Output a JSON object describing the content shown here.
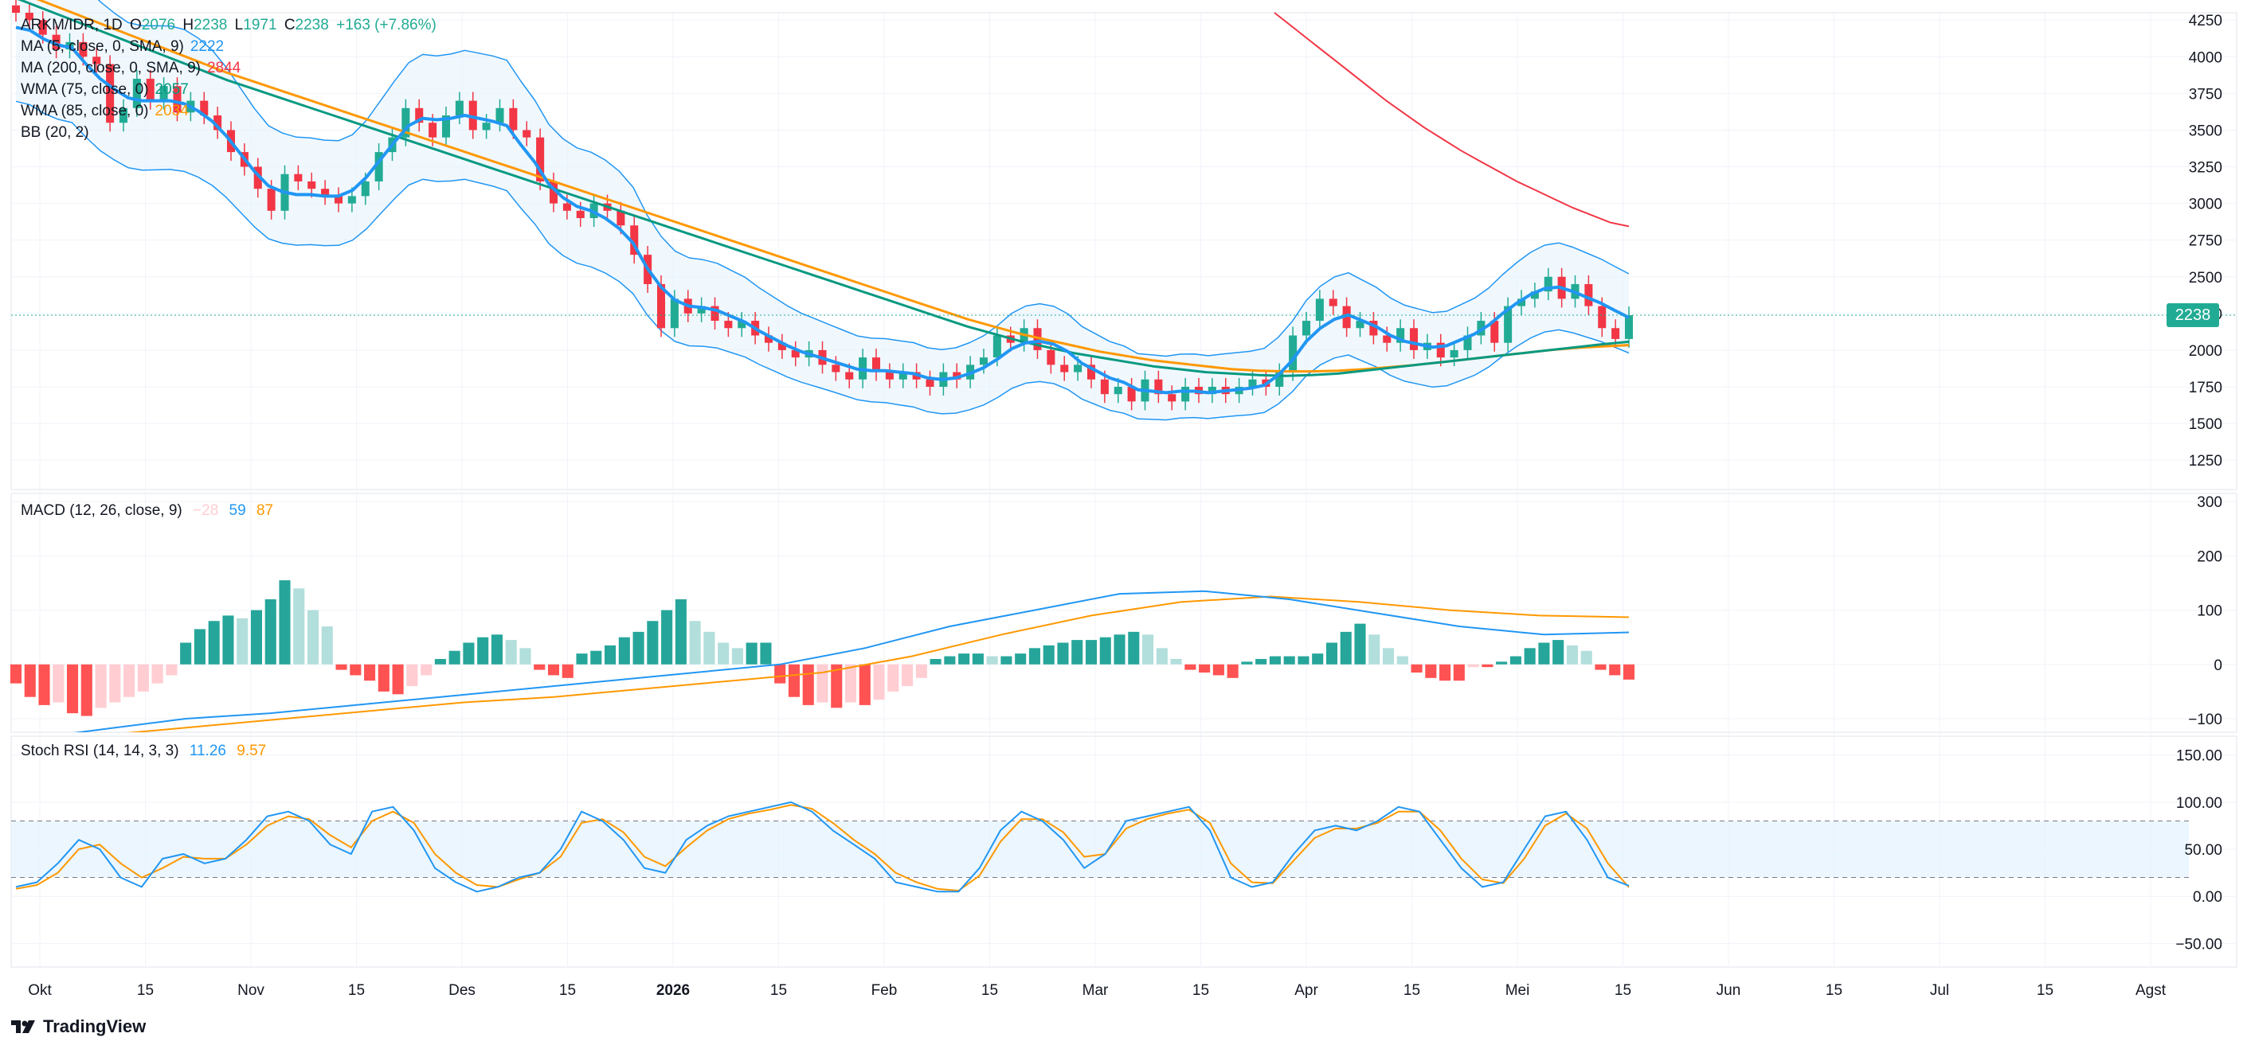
{
  "header": {
    "symbol": "ARKM/IDR, 1D",
    "open_label": "O",
    "open": "2076",
    "high_label": "H",
    "high": "2238",
    "low_label": "L",
    "low": "1971",
    "close_label": "C",
    "close": "2238",
    "change": "+163 (+7.86%)"
  },
  "price_legend": [
    {
      "label": "MA (5, close, 0, SMA, 9)",
      "value": "2222",
      "color": "#2196f3"
    },
    {
      "label": "MA (200, close, 0, SMA, 9)",
      "value": "2844",
      "color": "#f23645"
    },
    {
      "label": "WMA (75, close, 0)",
      "value": "2057",
      "color": "#089981"
    },
    {
      "label": "WMA (85, close, 0)",
      "value": "2034",
      "color": "#ff9800"
    },
    {
      "label": "BB (20, 2)",
      "value": "",
      "color": "#2196f3"
    }
  ],
  "macd_legend": {
    "label": "MACD (12, 26, close, 9)",
    "hist": "−28",
    "macd": "59",
    "signal": "87"
  },
  "stoch_legend": {
    "label": "Stoch RSI (14, 14, 3, 3)",
    "k": "11.26",
    "d": "9.57"
  },
  "last_price_tag": "2238",
  "branding": "TradingView",
  "colors": {
    "up": "#22ab94",
    "down": "#f23645",
    "ma5": "#2196f3",
    "ma200": "#f23645",
    "wma75": "#089981",
    "wma85": "#ff9800",
    "bb": "#2196f3",
    "bb_fill": "#e3f2fd",
    "macd_line": "#2196f3",
    "signal_line": "#ff9800",
    "hist_up_strong": "#26a69a",
    "hist_up_weak": "#b2dfdb",
    "hist_down_strong": "#ff5252",
    "hist_down_weak": "#ffcdd2",
    "stoch_k": "#2196f3",
    "stoch_d": "#ff9800",
    "grid": "#f0f3fa",
    "axis_text": "#131722"
  },
  "chart_data": [
    {
      "type": "candlestick",
      "pane": "price",
      "y_ticks": [
        1250,
        1500,
        1750,
        2000,
        2250,
        2500,
        2750,
        3000,
        3250,
        3500,
        3750,
        4000,
        4250
      ],
      "ylim": [
        1050,
        4300
      ],
      "x_ticks": [
        "Okt",
        "15",
        "Nov",
        "15",
        "Des",
        "15",
        "2026",
        "15",
        "Feb",
        "15",
        "Mar",
        "15",
        "Apr",
        "15",
        "Mei",
        "15",
        "Jun",
        "15",
        "Jul",
        "15",
        "Agst"
      ],
      "close": [
        4300,
        4250,
        4150,
        4050,
        4100,
        4000,
        3950,
        3550,
        3650,
        3850,
        3700,
        3800,
        3620,
        3700,
        3600,
        3500,
        3350,
        3250,
        3100,
        2950,
        3200,
        3150,
        3100,
        3050,
        3000,
        3050,
        3150,
        3350,
        3450,
        3650,
        3550,
        3450,
        3600,
        3700,
        3500,
        3550,
        3650,
        3500,
        3450,
        3150,
        3000,
        2950,
        2900,
        3000,
        2950,
        2850,
        2650,
        2450,
        2150,
        2350,
        2250,
        2300,
        2200,
        2150,
        2200,
        2100,
        2050,
        2000,
        1950,
        2000,
        1900,
        1850,
        1800,
        1950,
        1850,
        1800,
        1850,
        1800,
        1750,
        1850,
        1800,
        1900,
        1950,
        2100,
        2050,
        2150,
        2000,
        1900,
        1850,
        1900,
        1800,
        1700,
        1750,
        1650,
        1800,
        1700,
        1650,
        1750,
        1700,
        1750,
        1700,
        1750,
        1800,
        1750,
        1850,
        2100,
        2200,
        2350,
        2300,
        2150,
        2200,
        2100,
        2050,
        2150,
        2000,
        2050,
        1950,
        2000,
        2100,
        2200,
        2050,
        2300,
        2350,
        2400,
        2500,
        2350,
        2450,
        2300,
        2150,
        2076,
        2238
      ],
      "high_last": 2238,
      "low_last": 1971,
      "ma5": [
        4200,
        4180,
        4120,
        4080,
        4060,
        3950,
        3850,
        3780,
        3720,
        3700,
        3700,
        3700,
        3680,
        3630,
        3560,
        3460,
        3340,
        3220,
        3120,
        3080,
        3060,
        3060,
        3050,
        3050,
        3090,
        3180,
        3300,
        3420,
        3530,
        3580,
        3570,
        3580,
        3600,
        3580,
        3560,
        3530,
        3400,
        3280,
        3130,
        3040,
        2980,
        2950,
        2900,
        2830,
        2730,
        2560,
        2430,
        2340,
        2300,
        2290,
        2270,
        2230,
        2190,
        2130,
        2080,
        2030,
        1990,
        1960,
        1930,
        1900,
        1870,
        1860,
        1860,
        1850,
        1840,
        1810,
        1800,
        1810,
        1840,
        1880,
        1940,
        2010,
        2050,
        2060,
        2040,
        1990,
        1910,
        1860,
        1810,
        1780,
        1730,
        1720,
        1710,
        1720,
        1720,
        1710,
        1720,
        1730,
        1740,
        1760,
        1830,
        1930,
        2060,
        2150,
        2210,
        2240,
        2200,
        2160,
        2100,
        2060,
        2040,
        2020,
        2030,
        2070,
        2110,
        2170,
        2250,
        2320,
        2380,
        2420,
        2430,
        2400,
        2360,
        2320,
        2270,
        2222
      ],
      "wma75": [
        4400,
        4330,
        4260,
        4190,
        4120,
        4050,
        3980,
        3910,
        3840,
        3780,
        3720,
        3660,
        3600,
        3540,
        3480,
        3420,
        3360,
        3300,
        3240,
        3180,
        3120,
        3060,
        3000,
        2940,
        2880,
        2820,
        2760,
        2700,
        2640,
        2580,
        2520,
        2460,
        2400,
        2340,
        2280,
        2220,
        2160,
        2110,
        2060,
        2020,
        1980,
        1950,
        1920,
        1890,
        1870,
        1850,
        1840,
        1830,
        1825,
        1830,
        1840,
        1860,
        1880,
        1900,
        1920,
        1940,
        1960,
        1980,
        2000,
        2020,
        2040,
        2057
      ],
      "wma85": [
        4450,
        4380,
        4310,
        4240,
        4170,
        4100,
        4030,
        3960,
        3890,
        3830,
        3770,
        3710,
        3650,
        3590,
        3530,
        3470,
        3410,
        3350,
        3290,
        3230,
        3170,
        3110,
        3050,
        2990,
        2930,
        2870,
        2810,
        2750,
        2690,
        2630,
        2570,
        2510,
        2450,
        2390,
        2330,
        2270,
        2210,
        2160,
        2110,
        2070,
        2030,
        1990,
        1960,
        1930,
        1910,
        1890,
        1870,
        1860,
        1855,
        1855,
        1860,
        1870,
        1885,
        1900,
        1920,
        1940,
        1960,
        1980,
        2000,
        2015,
        2025,
        2034
      ],
      "ma200": [
        4300,
        4200,
        4100,
        4000,
        3900,
        3800,
        3700,
        3610,
        3520,
        3440,
        3360,
        3290,
        3220,
        3150,
        3090,
        3030,
        2970,
        2920,
        2870,
        2844
      ]
    },
    {
      "type": "bar",
      "pane": "macd",
      "title": "MACD (12, 26, close, 9)",
      "y_ticks": [
        -100,
        0,
        100,
        200,
        300
      ],
      "ylim": [
        -125,
        315
      ],
      "histogram": [
        -35,
        -60,
        -75,
        -70,
        -90,
        -95,
        -80,
        -70,
        -60,
        -50,
        -35,
        -20,
        40,
        65,
        80,
        90,
        85,
        100,
        120,
        155,
        140,
        100,
        70,
        -10,
        -20,
        -30,
        -50,
        -55,
        -40,
        -20,
        10,
        25,
        40,
        50,
        55,
        45,
        30,
        -10,
        -20,
        -25,
        20,
        25,
        35,
        50,
        60,
        80,
        100,
        120,
        80,
        60,
        40,
        30,
        40,
        40,
        -35,
        -60,
        -75,
        -70,
        -80,
        -70,
        -75,
        -65,
        -50,
        -40,
        -25,
        10,
        15,
        20,
        20,
        15,
        15,
        20,
        30,
        35,
        40,
        45,
        45,
        50,
        55,
        60,
        55,
        30,
        10,
        -10,
        -15,
        -20,
        -25,
        5,
        10,
        15,
        15,
        15,
        20,
        40,
        60,
        75,
        55,
        30,
        15,
        -15,
        -25,
        -30,
        -30,
        -5,
        -5,
        5,
        15,
        30,
        40,
        45,
        35,
        25,
        -10,
        -20,
        -28
      ],
      "macd": [
        -140,
        -120,
        -100,
        -90,
        -75,
        -60,
        -45,
        -30,
        -15,
        0,
        30,
        70,
        100,
        130,
        135,
        120,
        95,
        70,
        55,
        59
      ],
      "signal": [
        -150,
        -130,
        -115,
        -100,
        -85,
        -70,
        -60,
        -45,
        -30,
        -15,
        15,
        55,
        90,
        115,
        125,
        115,
        100,
        90,
        87
      ]
    },
    {
      "type": "line",
      "pane": "stoch_rsi",
      "title": "Stoch RSI (14, 14, 3, 3)",
      "y_ticks": [
        -50,
        0,
        50,
        100,
        150
      ],
      "y_tick_labels": [
        "−50.00",
        "0.00",
        "50.00",
        "100.00",
        "150.00"
      ],
      "ylim": [
        -75,
        170
      ],
      "band": [
        20,
        80
      ],
      "k": [
        10,
        15,
        35,
        60,
        50,
        20,
        10,
        40,
        45,
        35,
        40,
        60,
        85,
        90,
        80,
        55,
        45,
        90,
        95,
        70,
        30,
        15,
        5,
        10,
        20,
        25,
        50,
        90,
        80,
        60,
        30,
        25,
        60,
        75,
        85,
        90,
        95,
        100,
        90,
        70,
        55,
        40,
        15,
        10,
        5,
        5,
        30,
        70,
        90,
        80,
        60,
        30,
        45,
        80,
        85,
        90,
        95,
        70,
        20,
        10,
        15,
        45,
        70,
        75,
        70,
        80,
        95,
        90,
        60,
        30,
        10,
        15,
        50,
        85,
        90,
        60,
        20,
        11.26
      ],
      "d": [
        8,
        12,
        25,
        50,
        55,
        35,
        20,
        30,
        42,
        40,
        40,
        55,
        75,
        85,
        82,
        65,
        52,
        80,
        90,
        78,
        45,
        25,
        12,
        10,
        18,
        25,
        42,
        78,
        82,
        68,
        42,
        32,
        52,
        70,
        82,
        88,
        92,
        97,
        93,
        78,
        60,
        45,
        25,
        15,
        8,
        6,
        22,
        58,
        82,
        82,
        68,
        42,
        45,
        72,
        82,
        88,
        92,
        78,
        35,
        15,
        14,
        38,
        62,
        72,
        72,
        78,
        90,
        90,
        70,
        40,
        18,
        14,
        40,
        75,
        88,
        72,
        35,
        9.57
      ]
    }
  ]
}
